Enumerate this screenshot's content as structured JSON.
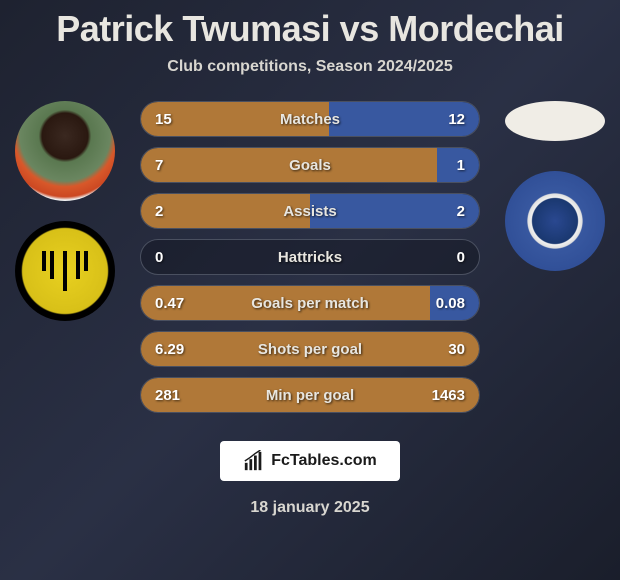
{
  "title": "Patrick Twumasi vs Mordechai",
  "subtitle": "Club competitions, Season 2024/2025",
  "date": "18 january 2025",
  "logo_text": "FcTables.com",
  "colors": {
    "left_fill": "#b07838",
    "right_fill": "#3858a0",
    "left_fill_dominant": "#b07838",
    "bar_border": "#4a5060",
    "text": "#e8e6e0"
  },
  "stats": [
    {
      "label": "Matches",
      "left_val": "15",
      "right_val": "12",
      "left_pct": 55.6,
      "right_pct": 44.4,
      "full": false
    },
    {
      "label": "Goals",
      "left_val": "7",
      "right_val": "1",
      "left_pct": 87.5,
      "right_pct": 12.5,
      "full": false
    },
    {
      "label": "Assists",
      "left_val": "2",
      "right_val": "2",
      "left_pct": 50,
      "right_pct": 50,
      "full": false
    },
    {
      "label": "Hattricks",
      "left_val": "0",
      "right_val": "0",
      "left_pct": 0,
      "right_pct": 0,
      "full": false
    },
    {
      "label": "Goals per match",
      "left_val": "0.47",
      "right_val": "0.08",
      "left_pct": 85.5,
      "right_pct": 14.5,
      "full": false
    },
    {
      "label": "Shots per goal",
      "left_val": "6.29",
      "right_val": "30",
      "left_pct": 100,
      "right_pct": 0,
      "full": true
    },
    {
      "label": "Min per goal",
      "left_val": "281",
      "right_val": "1463",
      "left_pct": 100,
      "right_pct": 0,
      "full": true
    }
  ]
}
